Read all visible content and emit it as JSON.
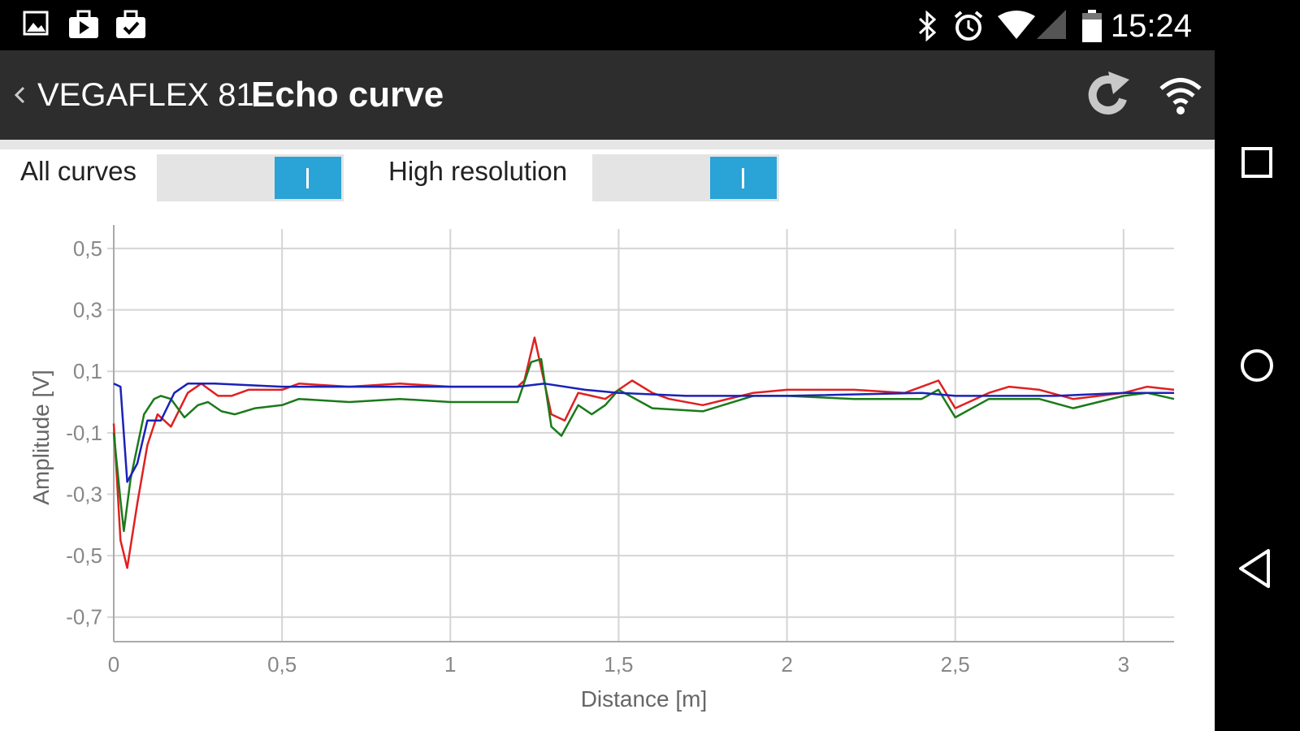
{
  "status_bar": {
    "left_icons": [
      "image-icon",
      "briefcase-upload-icon",
      "briefcase-check-icon"
    ],
    "right_icons": [
      "bluetooth-icon",
      "alarm-icon",
      "wifi-signal-icon",
      "cell-signal-icon",
      "battery-icon"
    ],
    "time": "15:24"
  },
  "app_bar": {
    "device_name": "VEGAFLEX 81",
    "title": "Echo curve",
    "actions": [
      "refresh-icon",
      "wifi-icon"
    ]
  },
  "toggles": [
    {
      "label": "All curves",
      "on": true
    },
    {
      "label": "High resolution",
      "on": true
    }
  ],
  "nav_bar": {
    "buttons": [
      "recents-icon",
      "home-icon",
      "back-icon"
    ]
  },
  "colors": {
    "red": "#e02020",
    "green": "#1a7a1a",
    "blue": "#1a22b8",
    "toggle": "#2aa3d6"
  },
  "chart_data": {
    "type": "line",
    "title": "",
    "xlabel": "Distance [m]",
    "ylabel": "Amplitude [V]",
    "xlim": [
      0,
      3.15
    ],
    "ylim": [
      -0.78,
      0.55
    ],
    "xticks": [
      0,
      0.5,
      1,
      1.5,
      2,
      2.5,
      3
    ],
    "xtick_labels": [
      "0",
      "0,5",
      "1",
      "1,5",
      "2",
      "2,5",
      "3"
    ],
    "yticks": [
      0.5,
      0.3,
      0.1,
      -0.1,
      -0.3,
      -0.5,
      -0.7
    ],
    "ytick_labels": [
      "0,5",
      "0,3",
      "0,1",
      "-0,1",
      "-0,3",
      "-0,5",
      "-0,7"
    ],
    "grid": true,
    "series": [
      {
        "color": "#e02020",
        "points": [
          [
            0,
            -0.07
          ],
          [
            0.02,
            -0.45
          ],
          [
            0.04,
            -0.54
          ],
          [
            0.07,
            -0.33
          ],
          [
            0.1,
            -0.14
          ],
          [
            0.13,
            -0.04
          ],
          [
            0.17,
            -0.08
          ],
          [
            0.22,
            0.03
          ],
          [
            0.26,
            0.06
          ],
          [
            0.31,
            0.02
          ],
          [
            0.35,
            0.02
          ],
          [
            0.4,
            0.04
          ],
          [
            0.5,
            0.04
          ],
          [
            0.55,
            0.06
          ],
          [
            0.7,
            0.05
          ],
          [
            0.85,
            0.06
          ],
          [
            1.0,
            0.05
          ],
          [
            1.2,
            0.05
          ],
          [
            1.22,
            0.07
          ],
          [
            1.25,
            0.21
          ],
          [
            1.28,
            0.06
          ],
          [
            1.3,
            -0.04
          ],
          [
            1.34,
            -0.06
          ],
          [
            1.38,
            0.03
          ],
          [
            1.42,
            0.02
          ],
          [
            1.46,
            0.01
          ],
          [
            1.5,
            0.04
          ],
          [
            1.54,
            0.07
          ],
          [
            1.6,
            0.03
          ],
          [
            1.65,
            0.01
          ],
          [
            1.75,
            -0.01
          ],
          [
            1.9,
            0.03
          ],
          [
            2.0,
            0.04
          ],
          [
            2.2,
            0.04
          ],
          [
            2.35,
            0.03
          ],
          [
            2.45,
            0.07
          ],
          [
            2.5,
            -0.02
          ],
          [
            2.6,
            0.03
          ],
          [
            2.66,
            0.05
          ],
          [
            2.75,
            0.04
          ],
          [
            2.85,
            0.01
          ],
          [
            3.0,
            0.03
          ],
          [
            3.07,
            0.05
          ],
          [
            3.15,
            0.04
          ]
        ]
      },
      {
        "color": "#1a7a1a",
        "points": [
          [
            0,
            -0.1
          ],
          [
            0.02,
            -0.32
          ],
          [
            0.03,
            -0.42
          ],
          [
            0.05,
            -0.25
          ],
          [
            0.09,
            -0.04
          ],
          [
            0.12,
            0.01
          ],
          [
            0.14,
            0.02
          ],
          [
            0.17,
            0.01
          ],
          [
            0.21,
            -0.05
          ],
          [
            0.25,
            -0.01
          ],
          [
            0.28,
            0.0
          ],
          [
            0.32,
            -0.03
          ],
          [
            0.36,
            -0.04
          ],
          [
            0.42,
            -0.02
          ],
          [
            0.5,
            -0.01
          ],
          [
            0.55,
            0.01
          ],
          [
            0.7,
            0.0
          ],
          [
            0.85,
            0.01
          ],
          [
            1.0,
            0.0
          ],
          [
            1.2,
            0.0
          ],
          [
            1.24,
            0.13
          ],
          [
            1.27,
            0.14
          ],
          [
            1.3,
            -0.08
          ],
          [
            1.33,
            -0.11
          ],
          [
            1.38,
            -0.01
          ],
          [
            1.42,
            -0.04
          ],
          [
            1.46,
            -0.01
          ],
          [
            1.5,
            0.04
          ],
          [
            1.6,
            -0.02
          ],
          [
            1.75,
            -0.03
          ],
          [
            1.9,
            0.02
          ],
          [
            2.0,
            0.02
          ],
          [
            2.2,
            0.01
          ],
          [
            2.4,
            0.01
          ],
          [
            2.45,
            0.04
          ],
          [
            2.5,
            -0.05
          ],
          [
            2.6,
            0.01
          ],
          [
            2.75,
            0.01
          ],
          [
            2.85,
            -0.02
          ],
          [
            3.0,
            0.02
          ],
          [
            3.07,
            0.03
          ],
          [
            3.15,
            0.01
          ]
        ]
      },
      {
        "color": "#1a22b8",
        "points": [
          [
            0,
            0.06
          ],
          [
            0.02,
            0.05
          ],
          [
            0.04,
            -0.26
          ],
          [
            0.07,
            -0.2
          ],
          [
            0.1,
            -0.06
          ],
          [
            0.14,
            -0.06
          ],
          [
            0.18,
            0.03
          ],
          [
            0.22,
            0.06
          ],
          [
            0.3,
            0.06
          ],
          [
            0.5,
            0.05
          ],
          [
            0.6,
            0.05
          ],
          [
            0.9,
            0.05
          ],
          [
            1.0,
            0.05
          ],
          [
            1.2,
            0.05
          ],
          [
            1.28,
            0.06
          ],
          [
            1.4,
            0.04
          ],
          [
            1.5,
            0.03
          ],
          [
            1.7,
            0.02
          ],
          [
            2.0,
            0.02
          ],
          [
            2.4,
            0.03
          ],
          [
            2.5,
            0.02
          ],
          [
            2.6,
            0.02
          ],
          [
            2.8,
            0.02
          ],
          [
            3.0,
            0.03
          ],
          [
            3.15,
            0.03
          ]
        ]
      }
    ]
  }
}
